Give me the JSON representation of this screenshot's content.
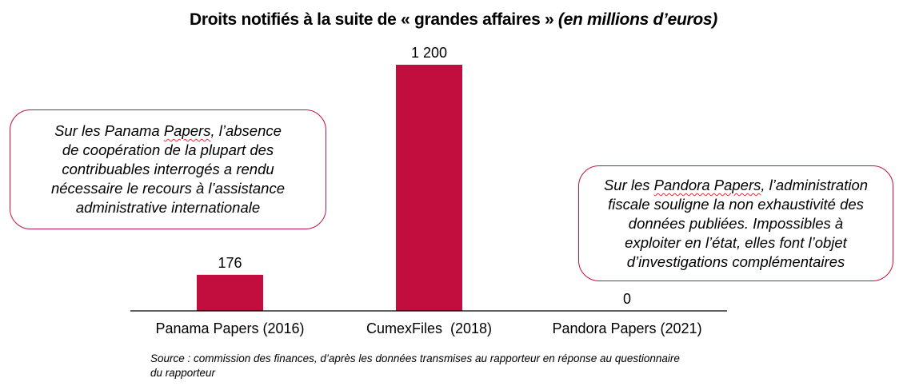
{
  "chart_data": {
    "type": "bar",
    "title": "Droits notifiés à la suite de « grandes affaires »",
    "subtitle": "(en millions  d’euros)",
    "categories": [
      "Panama Papers (2016)",
      "CumexFiles  (2018)",
      "Pandora Papers (2021)"
    ],
    "values": [
      176,
      1200,
      0
    ],
    "data_labels": [
      "176",
      "1 200",
      "0"
    ],
    "xlabel": "",
    "ylabel": "",
    "ylim": [
      0,
      1200
    ],
    "grid": false,
    "bar_color": "#c20e3e",
    "annotations": [
      {
        "target": "Panama Papers (2016)",
        "lines": [
          {
            "pre": "Sur les Panama ",
            "ul": "Papers",
            "post": ", l’absence"
          },
          {
            "pre": "de coopération de la plupart des",
            "ul": "",
            "post": ""
          },
          {
            "pre": "contribuables interrogés a rendu",
            "ul": "",
            "post": ""
          },
          {
            "pre": "nécessaire le recours à l’assistance",
            "ul": "",
            "post": ""
          },
          {
            "pre": "administrative internationale",
            "ul": "",
            "post": ""
          }
        ]
      },
      {
        "target": "Pandora Papers (2021)",
        "lines": [
          {
            "pre": "Sur les ",
            "ul": "Pandora Papers",
            "post": ", l’administration"
          },
          {
            "pre": "fiscale souligne la non exhaustivité des",
            "ul": "",
            "post": ""
          },
          {
            "pre": "données publiées. Impossibles à",
            "ul": "",
            "post": ""
          },
          {
            "pre": "exploiter en l’état, elles font l’objet",
            "ul": "",
            "post": ""
          },
          {
            "pre": "d’investigations complémentaires",
            "ul": "",
            "post": ""
          }
        ]
      }
    ],
    "source": "Source : commission des finances, d’après les données transmises au rapporteur en réponse au questionnaire  du rapporteur"
  }
}
